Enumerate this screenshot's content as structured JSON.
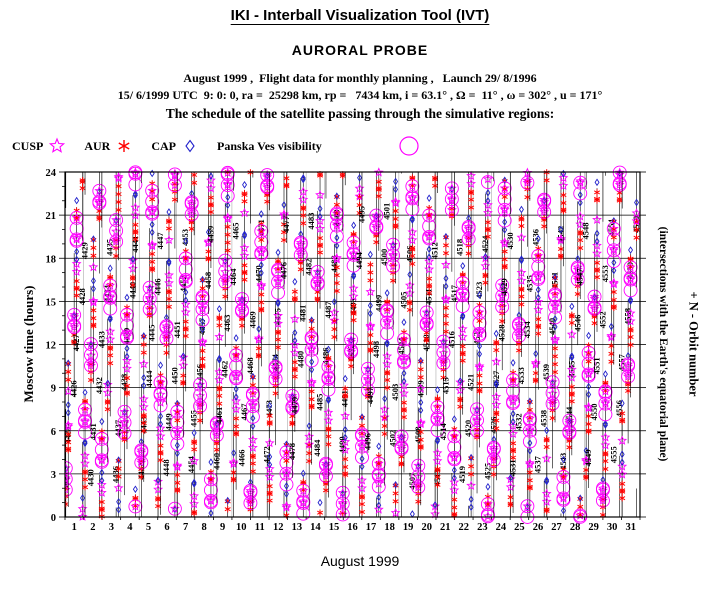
{
  "header": {
    "title": "IKI - Interball Visualization Tool (IVT)",
    "probe": "AURORAL PROBE",
    "info_line_1": "August 1999 ,  Flight data for monthly planning ,   Launch 29/ 8/1996",
    "info_line_2": "15/ 6/1999 UTC  9: 0: 0, ra =  25298 km, rp =   7434 km, i = 63.1° , Ω =  11° , ω = 302° , u = 171°",
    "caption": "The schedule of the satellite passing through the simulative regions:"
  },
  "legend": {
    "items": [
      {
        "label": "CUSP",
        "symbol": "open-star",
        "color": "#ff00ff"
      },
      {
        "label": "AUR",
        "symbol": "asterisk",
        "color": "#ff0000"
      },
      {
        "label": "CAP",
        "symbol": "open-diamond",
        "color": "#2222cc"
      },
      {
        "label": "Panska Ves visibility",
        "symbol": "large-open-circle",
        "color": "#ff00ff"
      }
    ]
  },
  "chart_data": {
    "type": "scatter",
    "title": "The schedule of the satellite passing through the simulative regions:",
    "xlabel": "August 1999",
    "ylabel": "Moscow time (hours)",
    "right_axis_label": "+ N - Orbit number",
    "right_axis_sublabel": "(intersections with the Earth's equatorial plane)",
    "x_ticks": [
      1,
      2,
      3,
      4,
      5,
      6,
      7,
      8,
      9,
      10,
      11,
      12,
      13,
      14,
      15,
      16,
      17,
      18,
      19,
      20,
      21,
      22,
      23,
      24,
      25,
      26,
      27,
      28,
      29,
      30,
      31
    ],
    "y_ticks": [
      0,
      3,
      6,
      9,
      12,
      15,
      18,
      21,
      24
    ],
    "x_range_days": [
      1,
      31
    ],
    "y_range_hours": [
      0,
      24
    ],
    "grid": {
      "horizontal_every_hours": 3,
      "vertical_every_days": 1
    },
    "series": [
      {
        "name": "CUSP",
        "symbol": "open-star",
        "color": "#ff00ff"
      },
      {
        "name": "AUR",
        "symbol": "asterisk",
        "color": "#ff0000"
      },
      {
        "name": "CAP",
        "symbol": "open-diamond",
        "color": "#2222cc"
      },
      {
        "name": "Panska Ves visibility",
        "symbol": "large-open-circle",
        "color": "#ff00ff"
      }
    ],
    "orbits": {
      "first_number": 4424,
      "last_number": 4560,
      "count": 137,
      "start_hour": 1.0,
      "crossing_interval_pattern_hours": [
        3.2,
        7.66
      ],
      "track_span_hours_before": 3.5,
      "track_span_hours_after": 6.5,
      "track_color": "#000000",
      "label_color": "#000000"
    },
    "symbol_phases_hours": {
      "even": {
        "aur": [
          0.2,
          0.55,
          0.9
        ],
        "cusp": [
          1.4,
          1.75
        ],
        "cap": [
          2.3
        ],
        "pv": [
          1.1,
          1.65,
          2.2
        ]
      },
      "odd": {
        "aur": [
          0.3,
          0.65,
          1.0,
          1.35,
          5.6,
          5.95,
          6.3
        ],
        "cusp": [
          2.0,
          2.35,
          4.6
        ],
        "cap": [
          3.1,
          3.45,
          6.8
        ],
        "pv": [
          4.0,
          4.55,
          5.1,
          5.65
        ]
      }
    }
  },
  "footer": {
    "caption": "August 1999"
  }
}
